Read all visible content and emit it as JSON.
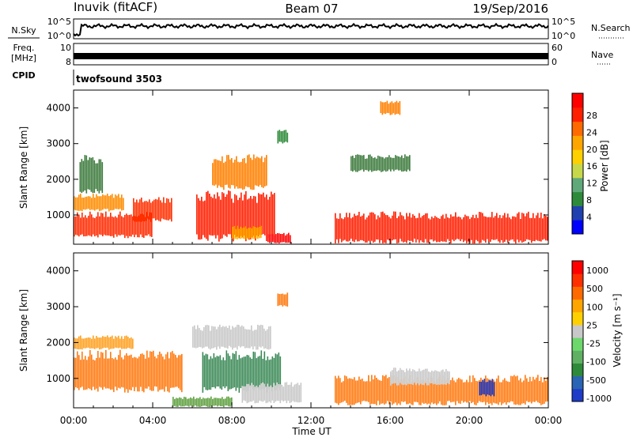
{
  "header": {
    "site": "Inuvik (fitACF)",
    "beam": "Beam 07",
    "date": "19/Sep/2016"
  },
  "strip_sky": {
    "label": "N.Sky",
    "tick_top": "10^5",
    "tick_bottom": "10^0",
    "right_tick_top": "10^5",
    "right_tick_bottom": "10^0",
    "right_label": "N.Search"
  },
  "strip_freq": {
    "label_line1": "Freq.",
    "label_line2": "[MHz]",
    "tick_top": "10",
    "tick_bottom": "8",
    "right_tick_top": "60",
    "right_tick_bottom": "0",
    "right_label": "Nave"
  },
  "strip_cpid": {
    "label": "CPID",
    "value": "twofsound 3503"
  },
  "colors": {
    "background": "#ffffff",
    "axis": "#000000"
  },
  "chart_data": [
    {
      "type": "heatmap",
      "panel": "power",
      "ylabel": "Slant Range [km]",
      "yticks": [
        1000,
        2000,
        3000,
        4000
      ],
      "ylim": [
        180,
        4500
      ],
      "xlim": [
        0,
        24
      ],
      "xtick_labels": [
        "00:00",
        "04:00",
        "08:00",
        "12:00",
        "16:00",
        "20:00",
        "00:00"
      ],
      "colorbar": {
        "label": "Power [dB]",
        "ticks": [
          "4",
          "8",
          "12",
          "16",
          "20",
          "24",
          "28"
        ],
        "colors": [
          "#0000ff",
          "#2040b0",
          "#2d8a3a",
          "#5fa87a",
          "#c6d84a",
          "#ffd000",
          "#ffa500",
          "#ff6a00",
          "#ff2000",
          "#ff0000"
        ]
      },
      "regions": [
        {
          "t0": 0.0,
          "t1": 4.0,
          "r0": 350,
          "r1": 1100,
          "color": "#ff2a00"
        },
        {
          "t0": 0.0,
          "t1": 2.5,
          "r0": 1100,
          "r1": 1600,
          "color": "#ff8c00"
        },
        {
          "t0": 0.3,
          "t1": 1.5,
          "r0": 1600,
          "r1": 2700,
          "color": "#3c7a3c"
        },
        {
          "t0": 3.0,
          "t1": 5.0,
          "r0": 800,
          "r1": 1500,
          "color": "#ff3000"
        },
        {
          "t0": 6.2,
          "t1": 10.2,
          "r0": 250,
          "r1": 1700,
          "color": "#ff1e00"
        },
        {
          "t0": 7.0,
          "t1": 9.8,
          "r0": 1700,
          "r1": 2700,
          "color": "#ff8000"
        },
        {
          "t0": 8.0,
          "t1": 9.5,
          "r0": 300,
          "r1": 700,
          "color": "#ffb000"
        },
        {
          "t0": 9.8,
          "t1": 11.0,
          "r0": 200,
          "r1": 500,
          "color": "#ff0000"
        },
        {
          "t0": 10.3,
          "t1": 10.8,
          "r0": 3000,
          "r1": 3400,
          "color": "#2d8a3a"
        },
        {
          "t0": 13.2,
          "t1": 24.0,
          "r0": 200,
          "r1": 1100,
          "color": "#ff1e00"
        },
        {
          "t0": 14.0,
          "t1": 17.0,
          "r0": 2200,
          "r1": 2700,
          "color": "#3c7a3c"
        },
        {
          "t0": 15.5,
          "t1": 16.5,
          "r0": 3800,
          "r1": 4200,
          "color": "#ff8000"
        }
      ]
    },
    {
      "type": "heatmap",
      "panel": "velocity",
      "ylabel": "Slant Range [km]",
      "xlabel": "Time UT",
      "yticks": [
        1000,
        2000,
        3000,
        4000
      ],
      "ylim": [
        180,
        4500
      ],
      "xlim": [
        0,
        24
      ],
      "xtick_labels": [
        "00:00",
        "04:00",
        "08:00",
        "12:00",
        "16:00",
        "20:00",
        "00:00"
      ],
      "colorbar": {
        "label": "Velocity [m s⁻¹]",
        "ticks": [
          "1000",
          "500",
          "100",
          "25",
          "-25",
          "-100",
          "-500",
          "-1000"
        ],
        "colors": [
          "#1e3cc8",
          "#2a64b4",
          "#2d8a3a",
          "#5fb062",
          "#6cd86c",
          "#c8c8c8",
          "#ffd000",
          "#ffa500",
          "#ff6a00",
          "#ff3000",
          "#ff0000"
        ]
      },
      "regions": [
        {
          "t0": 0.0,
          "t1": 5.5,
          "r0": 600,
          "r1": 1800,
          "color": "#ff7a10"
        },
        {
          "t0": 0.0,
          "t1": 3.0,
          "r0": 1800,
          "r1": 2200,
          "color": "#ffa020"
        },
        {
          "t0": 6.5,
          "t1": 10.5,
          "r0": 600,
          "r1": 1800,
          "color": "#3c8a58"
        },
        {
          "t0": 6.0,
          "t1": 10.0,
          "r0": 1800,
          "r1": 2500,
          "color": "#c8c8c8"
        },
        {
          "t0": 8.5,
          "t1": 11.5,
          "r0": 300,
          "r1": 900,
          "color": "#c8c8c8"
        },
        {
          "t0": 5.0,
          "t1": 8.0,
          "r0": 200,
          "r1": 500,
          "color": "#5fa040"
        },
        {
          "t0": 10.3,
          "t1": 10.8,
          "r0": 3000,
          "r1": 3400,
          "color": "#ff7a10"
        },
        {
          "t0": 13.2,
          "t1": 24.0,
          "r0": 250,
          "r1": 1100,
          "color": "#ff7a10"
        },
        {
          "t0": 20.5,
          "t1": 21.3,
          "r0": 500,
          "r1": 1000,
          "color": "#1e3cc8"
        },
        {
          "t0": 16.0,
          "t1": 19.0,
          "r0": 800,
          "r1": 1300,
          "color": "#c8c8c8"
        }
      ]
    }
  ]
}
